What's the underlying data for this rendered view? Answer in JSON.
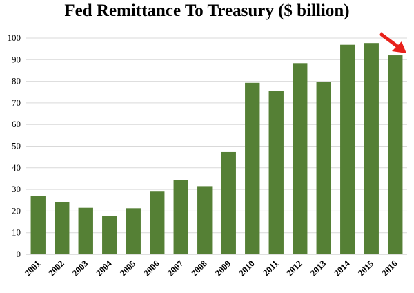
{
  "chart_data": {
    "type": "bar",
    "title": "Fed Remittance To Treasury ($ billion)",
    "xlabel": "",
    "ylabel": "",
    "categories": [
      "2001",
      "2002",
      "2003",
      "2004",
      "2005",
      "2006",
      "2007",
      "2008",
      "2009",
      "2010",
      "2011",
      "2012",
      "2013",
      "2014",
      "2015",
      "2016"
    ],
    "values": [
      26.9,
      24.0,
      21.5,
      17.6,
      21.3,
      29.0,
      34.3,
      31.5,
      47.3,
      79.3,
      75.4,
      88.4,
      79.6,
      96.9,
      97.7,
      92.0
    ],
    "ylim": [
      0,
      100
    ],
    "yticks": [
      0,
      10,
      20,
      30,
      40,
      50,
      60,
      70,
      80,
      90,
      100
    ],
    "grid": true,
    "legend": "none",
    "bar_color": "#558035",
    "grid_color": "#d9d9d9",
    "annotation": {
      "type": "arrow",
      "target": "2016",
      "color": "#e8211b"
    }
  }
}
